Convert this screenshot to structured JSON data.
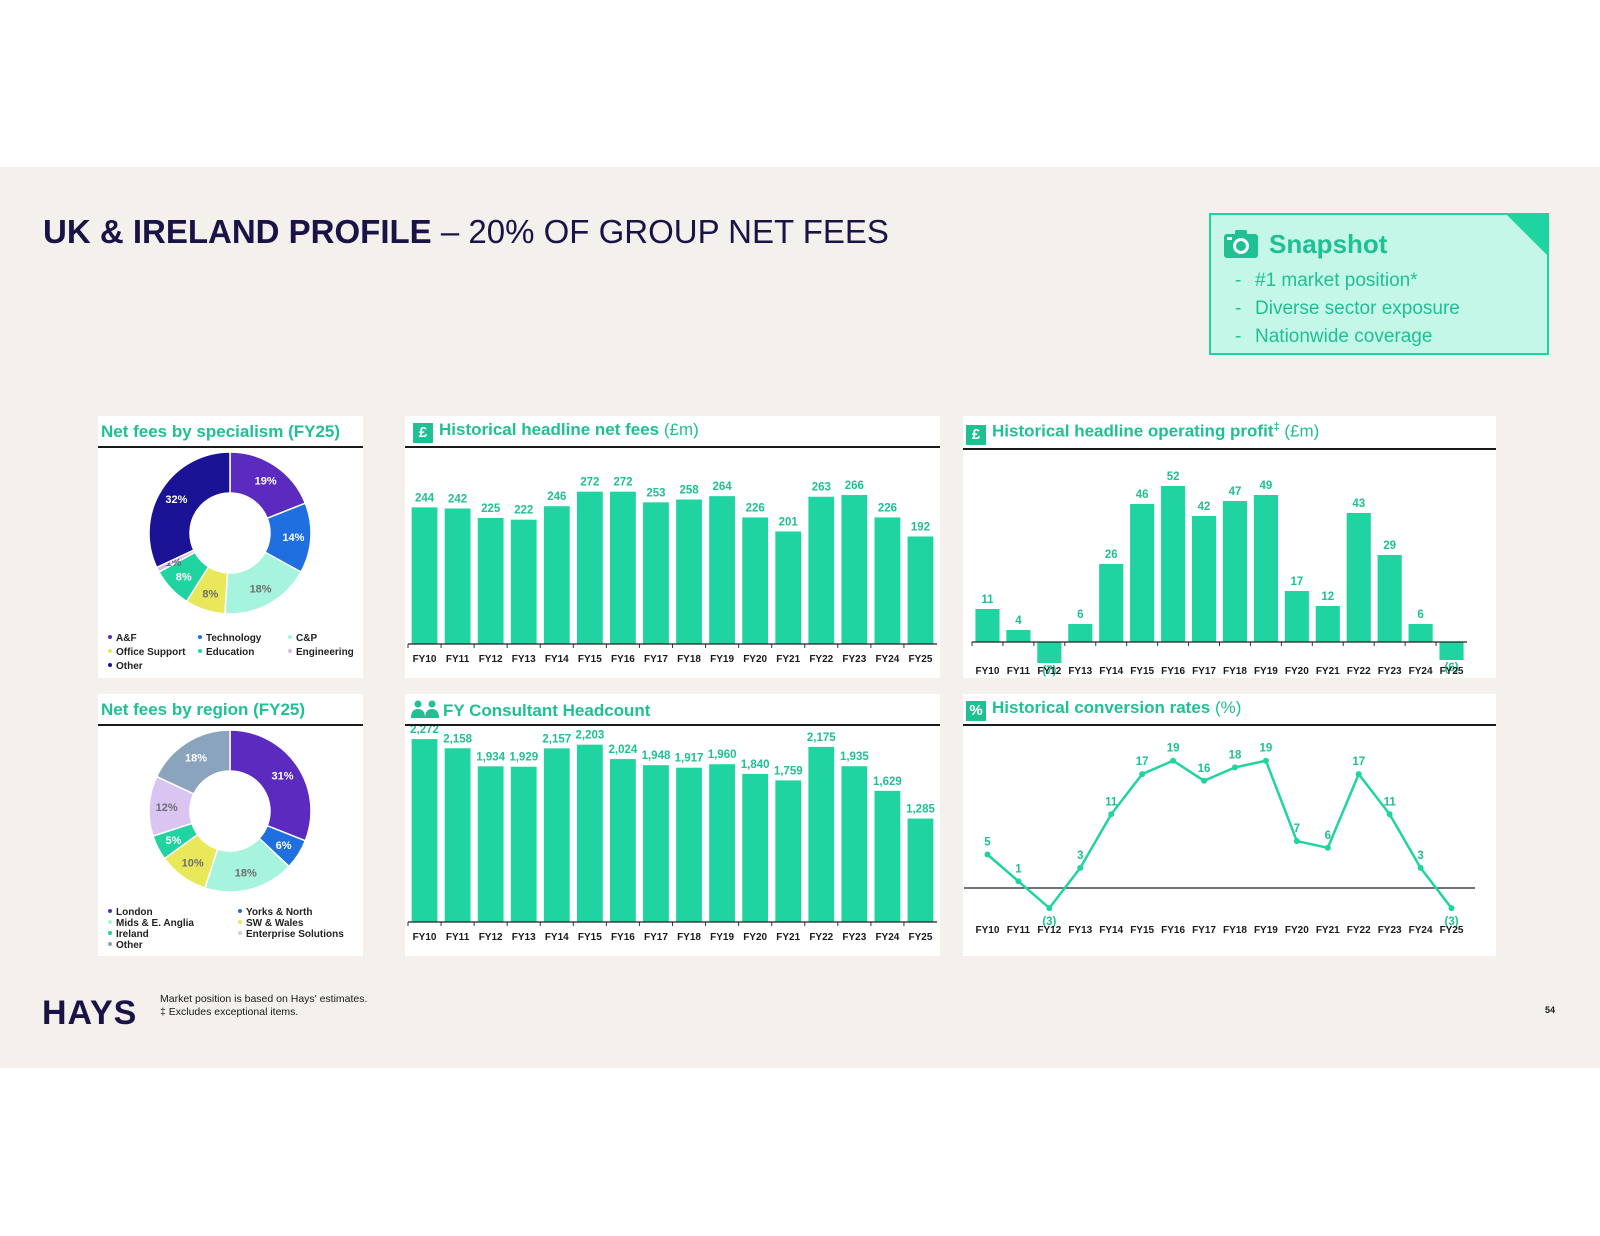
{
  "slide": {
    "title_bold": "UK & IRELAND PROFILE",
    "title_light": " – 20% OF GROUP NET FEES",
    "snapshot": {
      "title": "Snapshot",
      "icon": "camera-icon",
      "items": [
        "#1 market position*",
        "Diverse sector exposure",
        "Nationwide coverage"
      ]
    },
    "footer": {
      "logo": "HAYS",
      "note1": "Market position is based on Hays' estimates.",
      "note2": "‡ Excludes exceptional items.",
      "page": "54"
    },
    "colors": {
      "accent": "#1fd4a0",
      "accent_text": "#1fc094",
      "navy": "#1a1446",
      "background": "#f4f0ec"
    }
  },
  "panels": {
    "specialism": {
      "title": "Net fees by specialism (FY25)"
    },
    "net_fees": {
      "badge": "£",
      "title": "Historical headline net fees",
      "unit": " (£m)"
    },
    "op_profit": {
      "badge": "£",
      "title": "Historical headline operating profit",
      "sup": "‡",
      "unit": " (£m)"
    },
    "region": {
      "title": "Net fees by region (FY25)"
    },
    "headcount": {
      "badge": "people-icon",
      "title": "FY Consultant Headcount"
    },
    "conversion": {
      "badge": "%",
      "title": "Historical conversion rates",
      "unit": " (%)"
    }
  },
  "chart_data": [
    {
      "id": "specialism",
      "type": "pie",
      "title": "Net fees by specialism (FY25)",
      "categories": [
        "A&F",
        "Technology",
        "C&P",
        "Office Support",
        "Education",
        "Engineering",
        "Other"
      ],
      "values": [
        19,
        14,
        18,
        8,
        8,
        1,
        32
      ],
      "labels": [
        "19%",
        "14%",
        "18%",
        "8%",
        "8%",
        "1%",
        "32%"
      ],
      "colors": [
        "#5b2bbf",
        "#1f6fe0",
        "#a6f3de",
        "#e8e85a",
        "#1fd4a0",
        "#d9b8ee",
        "#1a1396"
      ],
      "legend": "bottom"
    },
    {
      "id": "net_fees",
      "type": "bar",
      "title": "Historical headline net fees (£m)",
      "categories": [
        "FY10",
        "FY11",
        "FY12",
        "FY13",
        "FY14",
        "FY15",
        "FY16",
        "FY17",
        "FY18",
        "FY19",
        "FY20",
        "FY21",
        "FY22",
        "FY23",
        "FY24",
        "FY25"
      ],
      "values": [
        244,
        242,
        225,
        222,
        246,
        272,
        272,
        253,
        258,
        264,
        226,
        201,
        263,
        266,
        226,
        192
      ],
      "labels": [
        "244",
        "242",
        "225",
        "222",
        "246",
        "272",
        "272",
        "253",
        "258",
        "264",
        "226",
        "201",
        "263",
        "266",
        "226",
        "192"
      ],
      "ylim": [
        0,
        290
      ]
    },
    {
      "id": "op_profit",
      "type": "bar",
      "title": "Historical headline operating profit‡ (£m)",
      "categories": [
        "FY10",
        "FY11",
        "FY12",
        "FY13",
        "FY14",
        "FY15",
        "FY16",
        "FY17",
        "FY18",
        "FY19",
        "FY20",
        "FY21",
        "FY22",
        "FY23",
        "FY24",
        "FY25"
      ],
      "values": [
        11,
        4,
        -7,
        6,
        26,
        46,
        52,
        42,
        47,
        49,
        17,
        12,
        43,
        29,
        6,
        -6
      ],
      "labels": [
        "11",
        "4",
        "(7)",
        "6",
        "26",
        "46",
        "52",
        "42",
        "47",
        "49",
        "17",
        "12",
        "43",
        "29",
        "6",
        "(6)"
      ],
      "ylim": [
        -10,
        60
      ]
    },
    {
      "id": "region",
      "type": "pie",
      "title": "Net fees by region (FY25)",
      "categories": [
        "London",
        "Yorks & North",
        "Mids & E. Anglia",
        "SW & Wales",
        "Ireland",
        "Enterprise Solutions",
        "Other"
      ],
      "values": [
        31,
        6,
        18,
        10,
        5,
        12,
        18
      ],
      "labels": [
        "31%",
        "6%",
        "18%",
        "10%",
        "5%",
        "12%",
        "18%"
      ],
      "colors": [
        "#5b2bbf",
        "#1f6fe0",
        "#a6f3de",
        "#e8e85a",
        "#1fd4a0",
        "#d9c4f2",
        "#8aa4bd"
      ],
      "legend": "bottom"
    },
    {
      "id": "headcount",
      "type": "bar",
      "title": "FY Consultant Headcount",
      "categories": [
        "FY10",
        "FY11",
        "FY12",
        "FY13",
        "FY14",
        "FY15",
        "FY16",
        "FY17",
        "FY18",
        "FY19",
        "FY20",
        "FY21",
        "FY22",
        "FY23",
        "FY24",
        "FY25"
      ],
      "values": [
        2272,
        2158,
        1934,
        1929,
        2157,
        2203,
        2024,
        1948,
        1917,
        1960,
        1840,
        1759,
        2175,
        1935,
        1629,
        1285
      ],
      "labels": [
        "2,272",
        "2,158",
        "1,934",
        "1,929",
        "2,157",
        "2,203",
        "2,024",
        "1,948",
        "1,917",
        "1,960",
        "1,840",
        "1,759",
        "2,175",
        "1,935",
        "1,629",
        "1,285"
      ],
      "ylim": [
        0,
        2300
      ]
    },
    {
      "id": "conversion",
      "type": "line",
      "title": "Historical conversion rates (%)",
      "categories": [
        "FY10",
        "FY11",
        "FY12",
        "FY13",
        "FY14",
        "FY15",
        "FY16",
        "FY17",
        "FY18",
        "FY19",
        "FY20",
        "FY21",
        "FY22",
        "FY23",
        "FY24",
        "FY25"
      ],
      "values": [
        5,
        1,
        -3,
        3,
        11,
        17,
        19,
        16,
        18,
        19,
        7,
        6,
        17,
        11,
        3,
        -3
      ],
      "labels": [
        "5",
        "1",
        "(3)",
        "3",
        "11",
        "17",
        "19",
        "16",
        "18",
        "19",
        "7",
        "6",
        "17",
        "11",
        "3",
        "(3)"
      ],
      "ylim": [
        -5,
        21
      ]
    }
  ]
}
